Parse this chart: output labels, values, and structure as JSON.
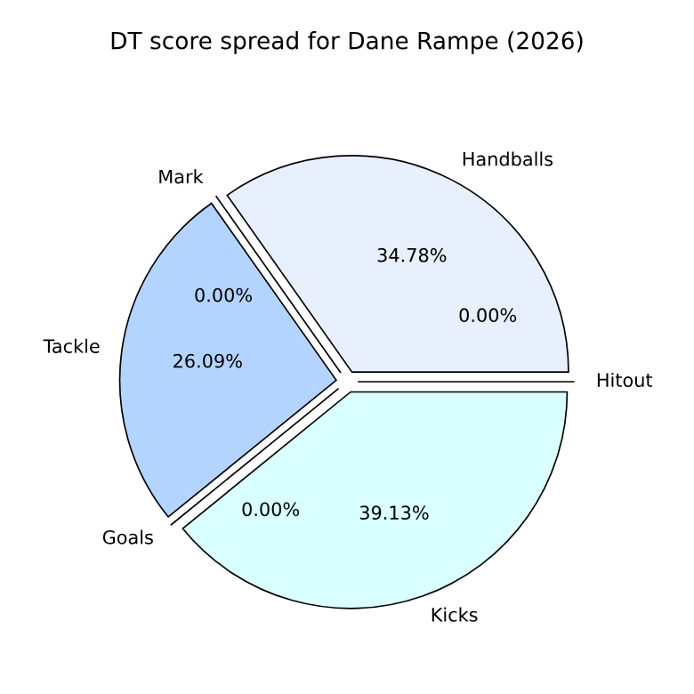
{
  "chart_data": {
    "type": "pie",
    "title": "DT score spread for Dane Rampe (2026)",
    "categories": [
      "Handballs",
      "Mark",
      "Tackle",
      "Goals",
      "Kicks",
      "Hitout"
    ],
    "values": [
      34.78,
      0,
      26.09,
      0,
      39.13,
      0
    ],
    "value_labels": [
      "34.78%",
      "0.00%",
      "26.09%",
      "0.00%",
      "39.13%",
      "0.00%"
    ],
    "colors": [
      "#e8f0fe",
      "#cfe2ff",
      "#b3d4ff",
      "#c6ecff",
      "#d9ffff",
      "#f0f8ff"
    ],
    "legend": false
  }
}
